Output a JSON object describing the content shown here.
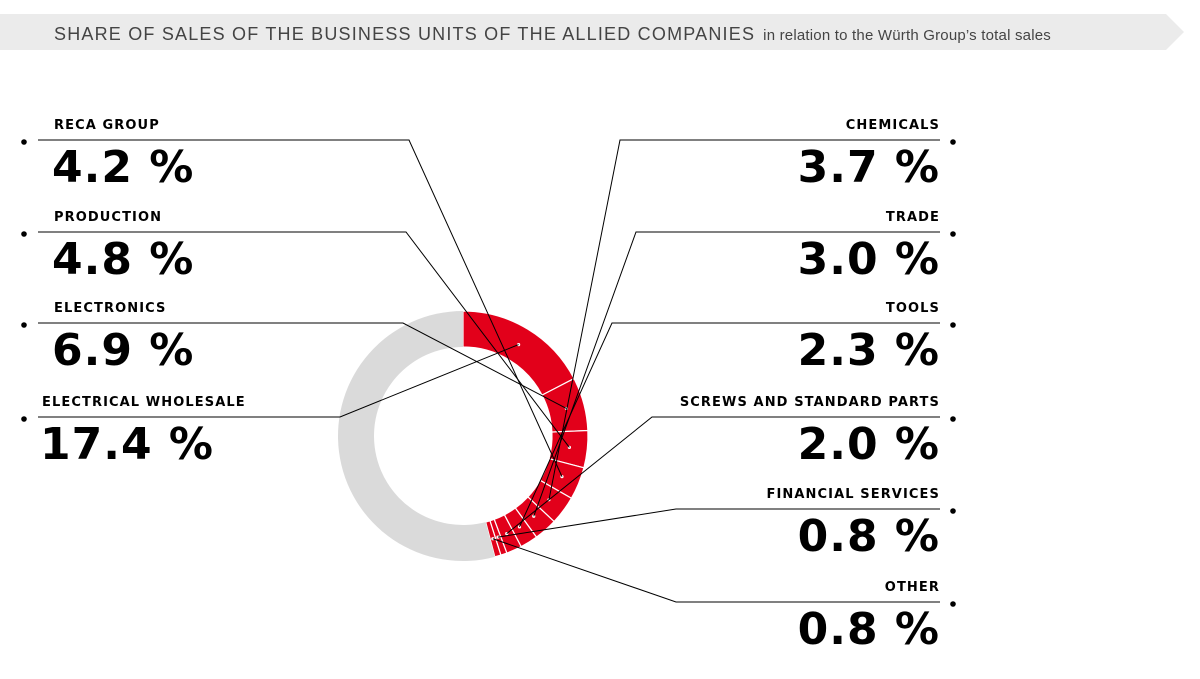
{
  "header": {
    "title": "SHARE OF SALES OF THE BUSINESS UNITS OF THE ALLIED COMPANIES",
    "subtitle": "in relation to the Würth Group’s total sales"
  },
  "colors": {
    "accent": "#e2001a",
    "remainder": "#dadada",
    "banner": "#ebebeb"
  },
  "chart_data": {
    "type": "pie",
    "variant": "donut",
    "unit": "%",
    "slices": [
      {
        "label": "ELECTRICAL WHOLESALE",
        "value": 17.4,
        "display": "17.4 %"
      },
      {
        "label": "ELECTRONICS",
        "value": 6.9,
        "display": "6.9 %"
      },
      {
        "label": "PRODUCTION",
        "value": 4.8,
        "display": "4.8 %"
      },
      {
        "label": "RECA GROUP",
        "value": 4.2,
        "display": "4.2 %"
      },
      {
        "label": "CHEMICALS",
        "value": 3.7,
        "display": "3.7 %"
      },
      {
        "label": "TRADE",
        "value": 3.0,
        "display": "3.0 %"
      },
      {
        "label": "TOOLS",
        "value": 2.3,
        "display": "2.3 %"
      },
      {
        "label": "SCREWS AND STANDARD PARTS",
        "value": 2.0,
        "display": "2.0 %"
      },
      {
        "label": "FINANCIAL SERVICES",
        "value": 0.8,
        "display": "0.8 %"
      },
      {
        "label": "OTHER",
        "value": 0.8,
        "display": "0.8 %"
      }
    ]
  }
}
